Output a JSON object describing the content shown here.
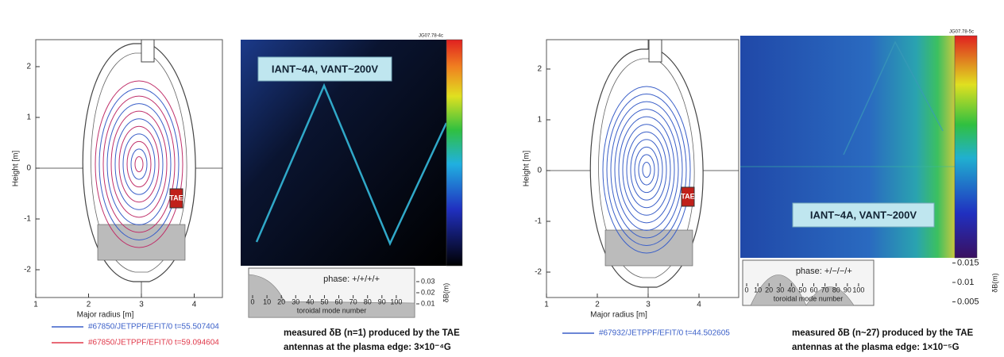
{
  "panels": [
    {
      "id_label": "JG07.78-4c",
      "ylabel": "Height [m]",
      "xlabel": "Major radius [m]",
      "yticks": [
        2,
        1,
        0,
        -1,
        -2
      ],
      "xticks": [
        1,
        2,
        3,
        4
      ],
      "antenna_label": "TAE",
      "annotation": "IANT~4A, VANT~200V",
      "inset": {
        "phase": "phase: +/+/+/+",
        "xlabel": "toroidal mode number",
        "xticks": [
          0,
          10,
          20,
          30,
          40,
          50,
          60,
          70,
          80,
          90,
          100
        ],
        "yticks": [
          0.03,
          0.02,
          0.01
        ],
        "ylabel": "δB(m)"
      },
      "legend": [
        {
          "text": "#67850/JETPPF/EFIT/0  t=55.507404",
          "color": "#3a5fc8"
        },
        {
          "text": "#67850/JETPPF/EFIT/0  t=59.094604",
          "color": "#e0394a"
        }
      ],
      "caption": [
        "measured δB (n=1) produced by the TAE",
        "antennas at the plasma edge: 3×10⁻⁴G"
      ]
    },
    {
      "id_label": "JG07.78-5c",
      "ylabel": "Height [m]",
      "xlabel": "Major radius [m]",
      "yticks": [
        2,
        1,
        0,
        -1,
        -2
      ],
      "xticks": [
        1,
        2,
        3,
        4
      ],
      "antenna_label": "TAE",
      "annotation": "IANT~4A, VANT~200V",
      "inset": {
        "phase": "phase: +/−/−/+",
        "xlabel": "toroidal mode number",
        "xticks": [
          0,
          10,
          20,
          30,
          40,
          50,
          60,
          70,
          80,
          90,
          100
        ],
        "yticks": [
          0.015,
          0.01,
          0.005
        ],
        "ylabel": "δB(m)"
      },
      "legend": [
        {
          "text": "#67932/JETPPF/EFIT/0  t=44.502605",
          "color": "#3a5fc8"
        }
      ],
      "caption": [
        "measured δB (n~27) produced by the TAE",
        "antennas at the plasma edge: 1×10⁻⁵G"
      ]
    }
  ]
}
